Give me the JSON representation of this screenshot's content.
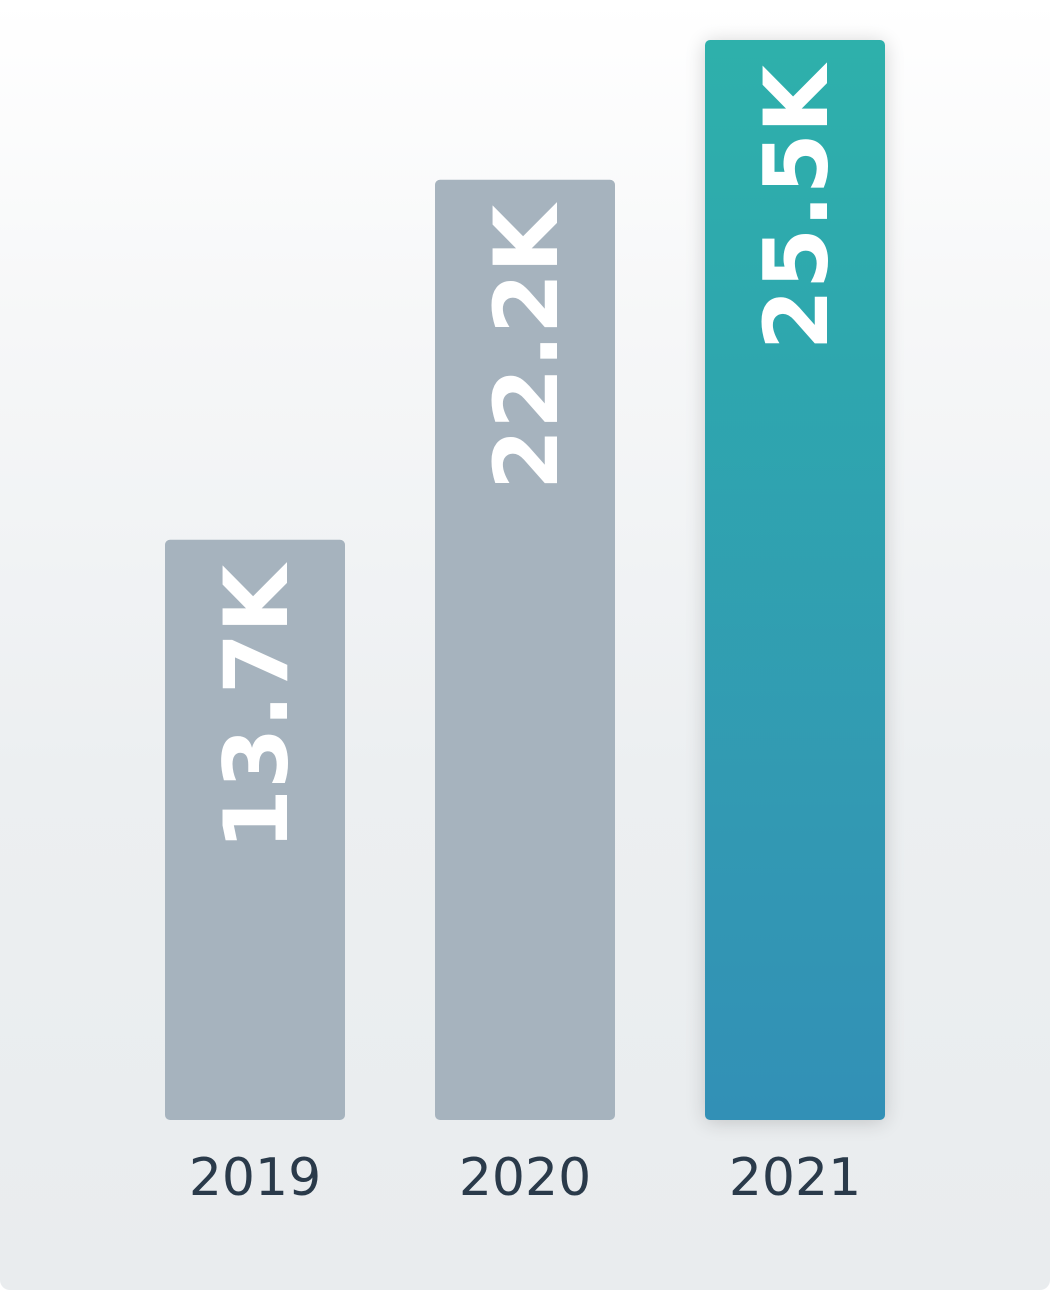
{
  "chart_data": {
    "type": "bar",
    "categories": [
      "2019",
      "2020",
      "2021"
    ],
    "values": [
      13.7,
      22.2,
      25.5
    ],
    "value_labels": [
      "13.7K",
      "22.2K",
      "25.5K"
    ],
    "title": "",
    "xlabel": "",
    "ylabel": "",
    "ylim": [
      0,
      25.5
    ],
    "grid": false,
    "highlight_index": 2,
    "colors": {
      "default_bar": "#a6b3be",
      "highlight_top": "#2eb0ab",
      "highlight_bottom": "#3190b6",
      "value_label": "#ffffff",
      "category_label": "#2a3a4a"
    }
  }
}
